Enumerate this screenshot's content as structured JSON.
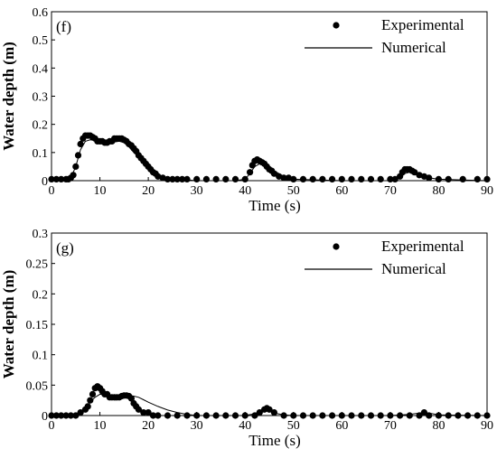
{
  "chart_data": [
    {
      "type": "line",
      "panel_label": "(f)",
      "xlabel": "Time (s)",
      "ylabel": "Water depth (m)",
      "xlim": [
        0,
        90
      ],
      "ylim": [
        0,
        0.6
      ],
      "xticks": [
        "0",
        "10",
        "20",
        "30",
        "40",
        "50",
        "60",
        "70",
        "80",
        "90"
      ],
      "yticks": [
        "0",
        "0.1",
        "0.2",
        "0.3",
        "0.4",
        "0.5",
        "0.6"
      ],
      "legend": {
        "placement": "top-right",
        "entries": [
          "Experimental",
          "Numerical"
        ]
      },
      "series": [
        {
          "name": "Experimental",
          "style": "markers",
          "x": [
            0,
            1,
            2,
            3,
            3.5,
            4,
            4.5,
            5,
            5.5,
            6,
            6.5,
            7,
            7.5,
            8,
            8.5,
            9,
            9.5,
            10,
            10.5,
            11,
            11.5,
            12,
            12.5,
            13,
            13.5,
            14,
            14.5,
            15,
            15.5,
            16,
            16.5,
            17,
            17.5,
            18,
            18.5,
            19,
            19.5,
            20,
            20.5,
            21,
            21.5,
            22,
            23,
            24,
            25,
            26,
            27,
            28,
            30,
            32,
            34,
            36,
            38,
            40,
            41,
            41.5,
            42,
            42.5,
            43,
            43.5,
            44,
            44.5,
            45,
            45.5,
            46,
            47,
            48,
            49,
            50,
            52,
            54,
            56,
            58,
            60,
            62,
            64,
            66,
            68,
            70,
            71,
            72,
            72.5,
            73,
            73.5,
            74,
            74.5,
            75,
            76,
            77,
            78,
            80,
            82,
            85,
            88,
            90
          ],
          "y": [
            0.005,
            0.005,
            0.005,
            0.005,
            0.005,
            0.01,
            0.02,
            0.05,
            0.09,
            0.13,
            0.15,
            0.16,
            0.16,
            0.16,
            0.155,
            0.15,
            0.14,
            0.14,
            0.14,
            0.135,
            0.135,
            0.14,
            0.14,
            0.15,
            0.15,
            0.15,
            0.15,
            0.145,
            0.14,
            0.13,
            0.125,
            0.115,
            0.105,
            0.09,
            0.08,
            0.07,
            0.06,
            0.05,
            0.04,
            0.03,
            0.025,
            0.015,
            0.01,
            0.005,
            0.005,
            0.005,
            0.005,
            0.005,
            0.005,
            0.005,
            0.005,
            0.005,
            0.005,
            0.005,
            0.03,
            0.055,
            0.07,
            0.075,
            0.07,
            0.065,
            0.06,
            0.05,
            0.04,
            0.035,
            0.025,
            0.015,
            0.01,
            0.01,
            0.005,
            0.005,
            0.005,
            0.005,
            0.005,
            0.005,
            0.005,
            0.005,
            0.005,
            0.005,
            0.005,
            0.005,
            0.015,
            0.03,
            0.04,
            0.04,
            0.04,
            0.035,
            0.03,
            0.02,
            0.015,
            0.01,
            0.005,
            0.005,
            0.005,
            0.005,
            0.005
          ]
        },
        {
          "name": "Numerical",
          "style": "line",
          "x": [
            0,
            3,
            4,
            5,
            6,
            7,
            8,
            10,
            12,
            14,
            15,
            16,
            17,
            18,
            19,
            20,
            21,
            22,
            24,
            26,
            30,
            38,
            40,
            41,
            42,
            43,
            44,
            45,
            46,
            48,
            50,
            60,
            70,
            72,
            73,
            74,
            75,
            76,
            77,
            78,
            80,
            90
          ],
          "y": [
            0,
            0,
            0.01,
            0.05,
            0.11,
            0.14,
            0.145,
            0.14,
            0.135,
            0.14,
            0.135,
            0.12,
            0.1,
            0.085,
            0.065,
            0.05,
            0.035,
            0.02,
            0.01,
            0.005,
            0,
            0,
            0.005,
            0.025,
            0.05,
            0.06,
            0.055,
            0.045,
            0.035,
            0.015,
            0.005,
            0,
            0,
            0.01,
            0.025,
            0.03,
            0.025,
            0.02,
            0.015,
            0.01,
            0.005,
            0
          ]
        }
      ]
    },
    {
      "type": "line",
      "panel_label": "(g)",
      "xlabel": "Time (s)",
      "ylabel": "Water depth (m)",
      "xlim": [
        0,
        90
      ],
      "ylim": [
        0,
        0.3
      ],
      "xticks": [
        "0",
        "10",
        "20",
        "30",
        "40",
        "50",
        "60",
        "70",
        "80",
        "90"
      ],
      "yticks": [
        "0",
        "0.05",
        "0.1",
        "0.15",
        "0.2",
        "0.25",
        "0.3"
      ],
      "legend": {
        "placement": "top-right",
        "entries": [
          "Experimental",
          "Numerical"
        ]
      },
      "series": [
        {
          "name": "Experimental",
          "style": "markers",
          "x": [
            0,
            1,
            2,
            3,
            4,
            5,
            6,
            7,
            7.5,
            8,
            8.5,
            9,
            9.5,
            10,
            10.5,
            11,
            11.5,
            12,
            12.5,
            13,
            13.5,
            14,
            14.5,
            15,
            15.5,
            16,
            16.5,
            17,
            17.5,
            18,
            19,
            20,
            21,
            22,
            24,
            26,
            28,
            30,
            32,
            34,
            36,
            38,
            40,
            42,
            43,
            44,
            44.5,
            45,
            46,
            48,
            50,
            52,
            54,
            56,
            58,
            60,
            62,
            64,
            66,
            68,
            70,
            72,
            74,
            76,
            77,
            78,
            80,
            82,
            84,
            86,
            88,
            90
          ],
          "y": [
            0,
            0,
            0,
            0,
            0,
            0,
            0.005,
            0.01,
            0.015,
            0.025,
            0.035,
            0.045,
            0.048,
            0.045,
            0.04,
            0.035,
            0.035,
            0.03,
            0.03,
            0.03,
            0.03,
            0.03,
            0.032,
            0.033,
            0.033,
            0.032,
            0.028,
            0.02,
            0.015,
            0.01,
            0.005,
            0.005,
            0,
            0,
            0,
            0,
            0,
            0,
            0,
            0,
            0,
            0,
            0,
            0,
            0.005,
            0.01,
            0.012,
            0.01,
            0.005,
            0,
            0,
            0,
            0,
            0,
            0,
            0,
            0,
            0,
            0,
            0,
            0,
            0,
            0,
            0,
            0.005,
            0,
            0,
            0,
            0,
            0,
            0,
            0
          ]
        },
        {
          "name": "Numerical",
          "style": "line",
          "x": [
            0,
            5,
            6,
            7,
            8,
            9,
            10,
            11,
            12,
            13,
            14,
            15,
            16,
            17,
            18,
            19,
            20,
            22,
            24,
            26,
            28,
            30,
            40,
            42,
            43,
            44,
            45,
            46,
            48,
            50,
            60,
            70,
            74,
            76,
            77,
            78,
            80,
            90
          ],
          "y": [
            0,
            0,
            0.005,
            0.012,
            0.022,
            0.03,
            0.035,
            0.034,
            0.032,
            0.031,
            0.031,
            0.032,
            0.033,
            0.032,
            0.03,
            0.026,
            0.022,
            0.015,
            0.009,
            0.005,
            0.002,
            0,
            0,
            0.003,
            0.007,
            0.009,
            0.008,
            0.004,
            0.001,
            0,
            0,
            0,
            0.002,
            0.004,
            0.005,
            0.004,
            0.001,
            0
          ]
        }
      ]
    }
  ]
}
